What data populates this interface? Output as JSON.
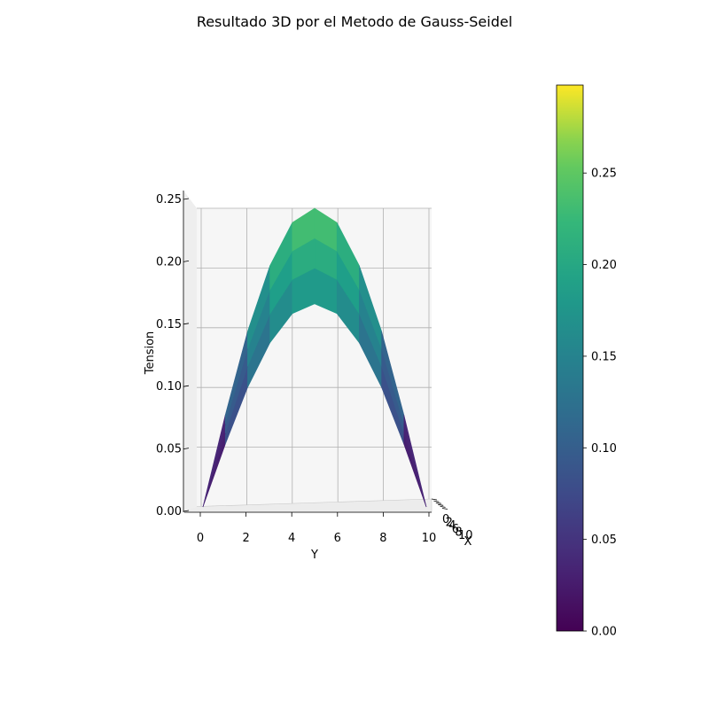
{
  "chart_data": {
    "type": "surface3d",
    "title": "Resultado 3D por el Metodo de Gauss-Seidel",
    "xlabel": "X",
    "ylabel": "Y",
    "zlabel": "Tension",
    "y_ticks": [
      "0",
      "2",
      "4",
      "6",
      "8",
      "10"
    ],
    "x_ticks": [
      "0",
      "2",
      "4",
      "6",
      "8",
      "10"
    ],
    "z_ticks": [
      "0.00",
      "0.05",
      "0.10",
      "0.15",
      "0.20",
      "0.25"
    ],
    "grid": true,
    "colormap": "viridis",
    "colorbar": {
      "range": [
        0.0,
        0.298
      ],
      "ticks": [
        "0.00",
        "0.05",
        "0.10",
        "0.15",
        "0.20",
        "0.25"
      ]
    },
    "y": [
      0,
      1,
      2,
      3,
      4,
      5,
      6,
      7,
      8,
      9,
      10
    ],
    "profile_max": [
      0.0,
      0.077,
      0.147,
      0.202,
      0.238,
      0.25,
      0.238,
      0.202,
      0.147,
      0.077,
      0.0
    ],
    "rows_scale": [
      0.68,
      0.8,
      0.9,
      1.0
    ]
  }
}
